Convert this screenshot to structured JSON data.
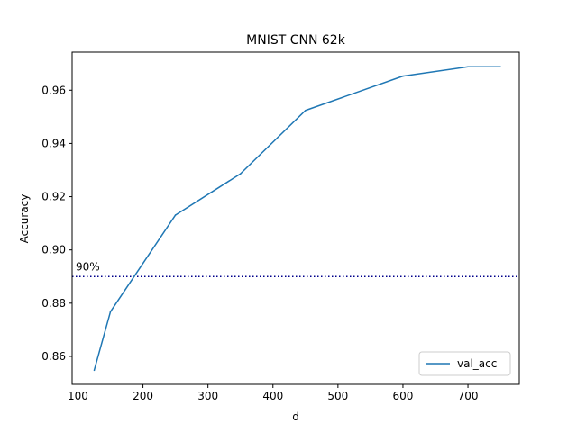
{
  "chart_data": {
    "type": "line",
    "title": "MNIST CNN 62k",
    "xlabel": "d",
    "ylabel": "Accuracy",
    "xlim": [
      91,
      779
    ],
    "ylim": [
      0.8495,
      0.9743
    ],
    "x_ticks": [
      100,
      200,
      300,
      400,
      500,
      600,
      700
    ],
    "y_ticks": [
      0.86,
      0.88,
      0.9,
      0.92,
      0.94,
      0.96
    ],
    "y_tick_labels": [
      "0.86",
      "0.88",
      "0.90",
      "0.92",
      "0.94",
      "0.96"
    ],
    "grid": false,
    "legend_position": "lower right",
    "series": [
      {
        "name": "val_acc",
        "color": "#1f77b4",
        "x": [
          125,
          150,
          250,
          350,
          450,
          600,
          700,
          750
        ],
        "y": [
          0.8548,
          0.8768,
          0.9131,
          0.9286,
          0.9524,
          0.9653,
          0.9688,
          0.9688
        ]
      }
    ],
    "reference_line": {
      "y": 0.89,
      "label": "90%",
      "color": "#00008b",
      "style": "dotted"
    }
  }
}
